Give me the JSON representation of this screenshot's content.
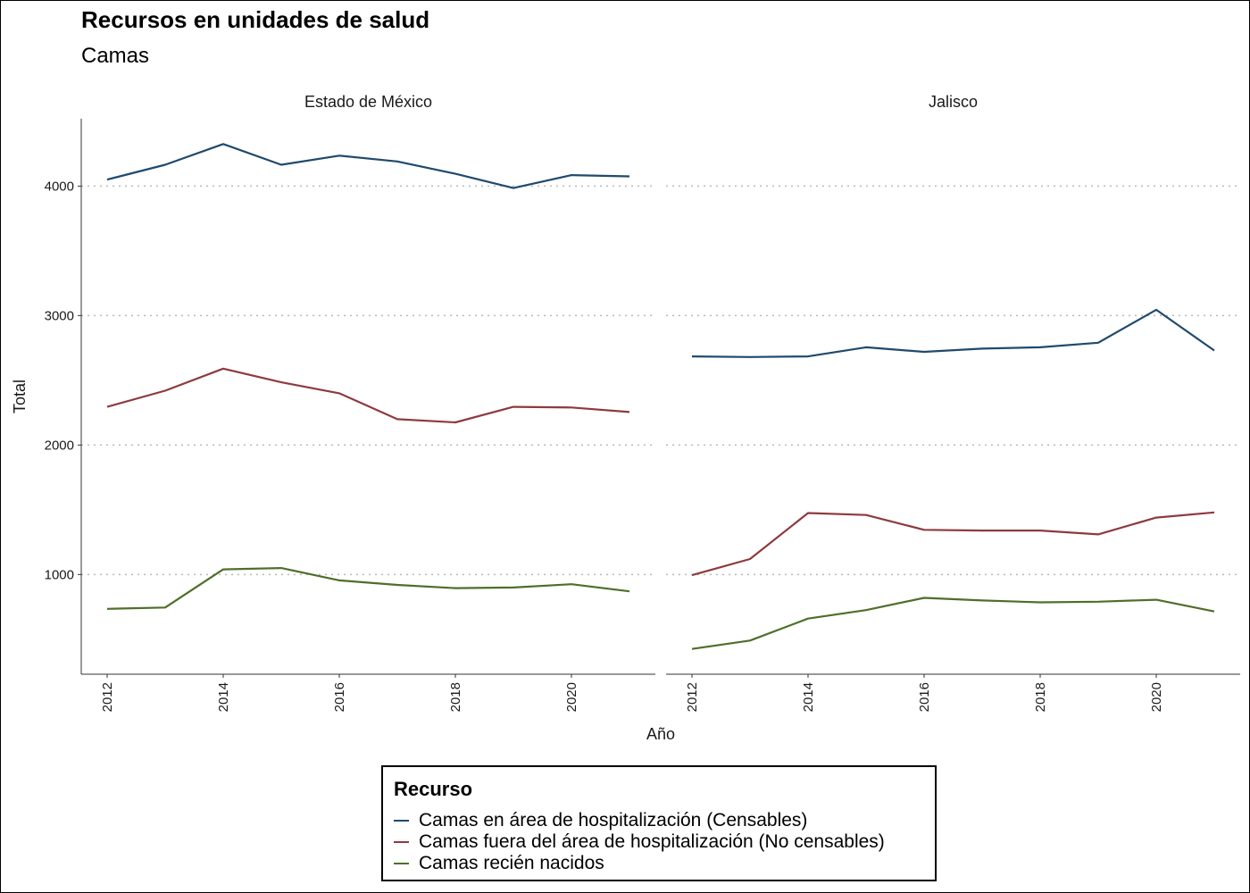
{
  "title": "Recursos en unidades de salud",
  "subtitle": "Camas",
  "colors": {
    "censables": "#1f4a6e",
    "no_censables": "#8e3a3e",
    "recien_nacidos": "#4f6e2a"
  },
  "legend": {
    "title": "Recurso",
    "items": [
      {
        "label": "Camas en área de hospitalización (Censables)",
        "color": "#1f4a6e"
      },
      {
        "label": "Camas fuera del área de hospitalización (No censables)",
        "color": "#8e3a3e"
      },
      {
        "label": "Camas recién nacidos",
        "color": "#4f6e2a"
      }
    ]
  },
  "chart_data": {
    "type": "line",
    "xlabel": "Año",
    "ylabel": "Total",
    "x": [
      2012,
      2013,
      2014,
      2015,
      2016,
      2017,
      2018,
      2019,
      2020,
      2021
    ],
    "x_ticks": [
      2012,
      2014,
      2016,
      2018,
      2020
    ],
    "y_ticks": [
      1000,
      2000,
      3000,
      4000
    ],
    "ylim": [
      230,
      4520
    ],
    "grid": "horizontal dotted",
    "legend_position": "bottom",
    "facets": [
      {
        "label": "Estado de México",
        "series": [
          {
            "name": "Camas en área de hospitalización (Censables)",
            "color": "#1f4a6e",
            "values": [
              4050,
              4165,
              4325,
              4165,
              4235,
              4190,
              4095,
              3985,
              4085,
              4075
            ]
          },
          {
            "name": "Camas fuera del área de hospitalización (No censables)",
            "color": "#8e3a3e",
            "values": [
              2295,
              2420,
              2590,
              2485,
              2400,
              2200,
              2175,
              2295,
              2290,
              2255
            ]
          },
          {
            "name": "Camas recién nacidos",
            "color": "#4f6e2a",
            "values": [
              735,
              745,
              1040,
              1050,
              955,
              920,
              895,
              900,
              925,
              870
            ]
          }
        ]
      },
      {
        "label": "Jalisco",
        "series": [
          {
            "name": "Camas en área de hospitalización (Censables)",
            "color": "#1f4a6e",
            "values": [
              2685,
              2680,
              2685,
              2755,
              2720,
              2745,
              2755,
              2790,
              3045,
              2730
            ]
          },
          {
            "name": "Camas fuera del área de hospitalización (No censables)",
            "color": "#8e3a3e",
            "values": [
              995,
              1120,
              1475,
              1460,
              1345,
              1340,
              1340,
              1310,
              1440,
              1480
            ]
          },
          {
            "name": "Camas recién nacidos",
            "color": "#4f6e2a",
            "values": [
              425,
              490,
              660,
              725,
              820,
              800,
              785,
              790,
              805,
              715
            ]
          }
        ]
      }
    ]
  }
}
